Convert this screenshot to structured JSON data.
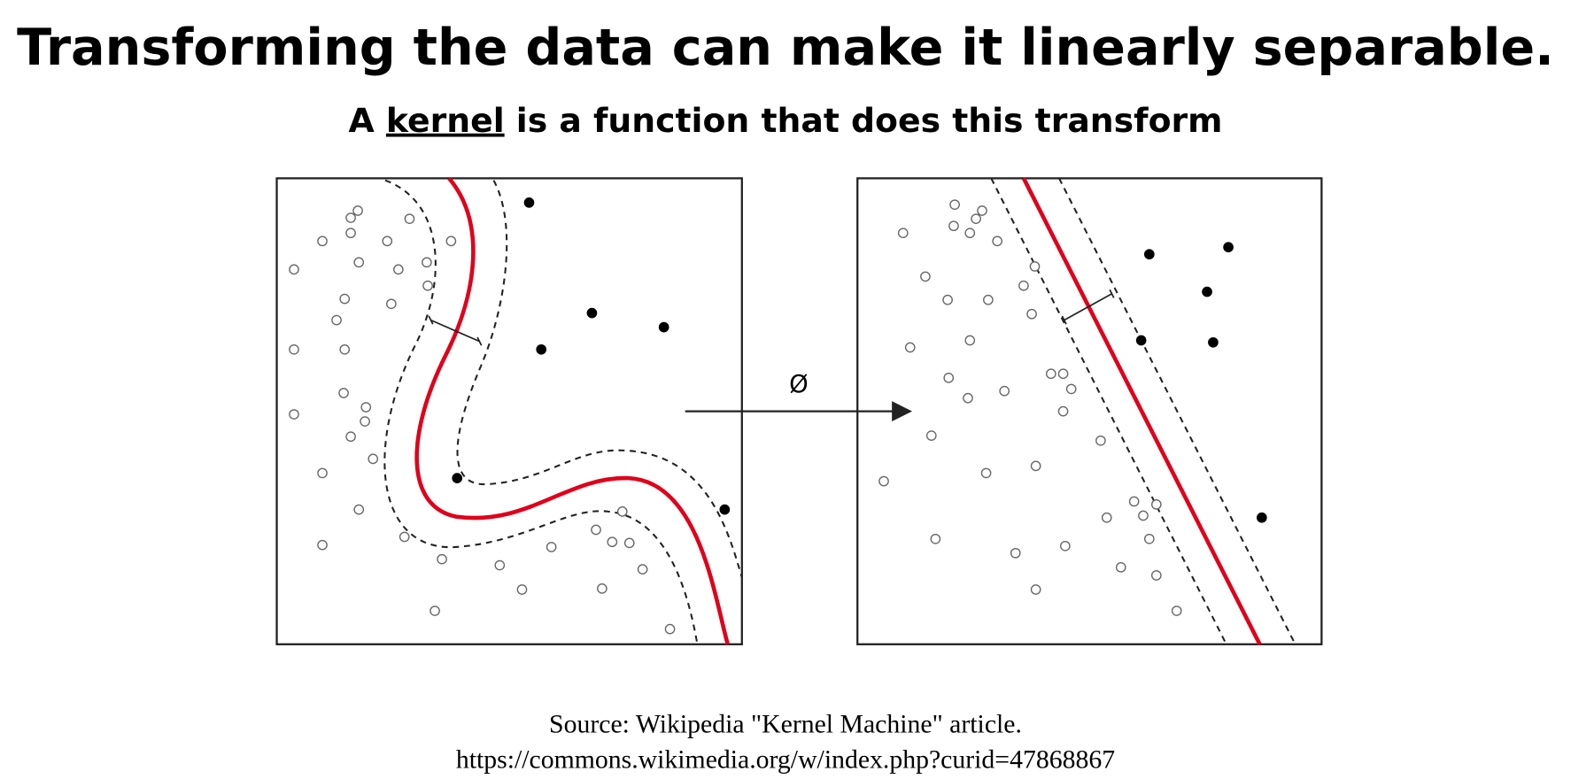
{
  "header": {
    "title": "Transforming the data can make it linearly separable.",
    "subtitle": {
      "before": "A",
      "term": "kernel",
      "after": "is a function that does this transform"
    }
  },
  "diagram": {
    "arrow_label": "Ø"
  },
  "footer": {
    "source": "Source: Wikipedia \"Kernel Machine\" article.",
    "url": "https://commons.wikimedia.org/w/index.php?curid=47868867"
  }
}
